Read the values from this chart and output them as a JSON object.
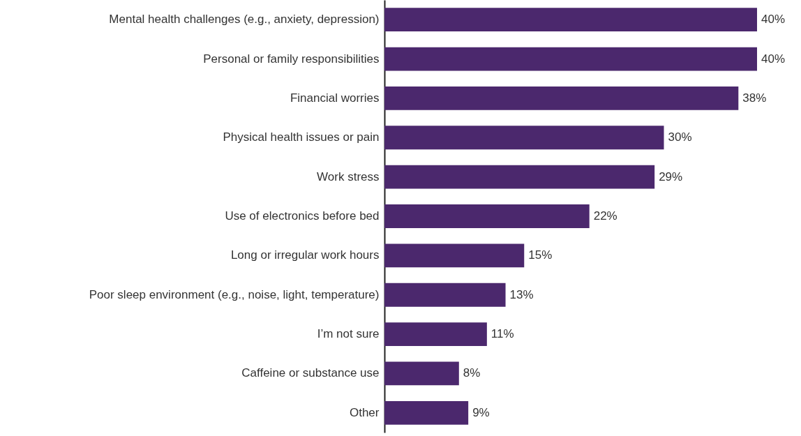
{
  "chart_data": {
    "type": "bar",
    "orientation": "horizontal",
    "categories": [
      "Mental health challenges (e.g., anxiety, depression)",
      "Personal or family responsibilities",
      "Financial worries",
      "Physical health issues or pain",
      "Work stress",
      "Use of electronics before bed",
      "Long or irregular work hours",
      "Poor sleep environment (e.g., noise, light, temperature)",
      "I’m not sure",
      "Caffeine or substance use",
      "Other"
    ],
    "values": [
      40,
      40,
      38,
      30,
      29,
      22,
      15,
      13,
      11,
      8,
      9
    ],
    "value_labels": [
      "40%",
      "40%",
      "38%",
      "30%",
      "29%",
      "22%",
      "15%",
      "13%",
      "11%",
      "8%",
      "9%"
    ],
    "color": "#4b286d",
    "xlim": [
      0,
      40
    ],
    "tick_labels": "y"
  }
}
